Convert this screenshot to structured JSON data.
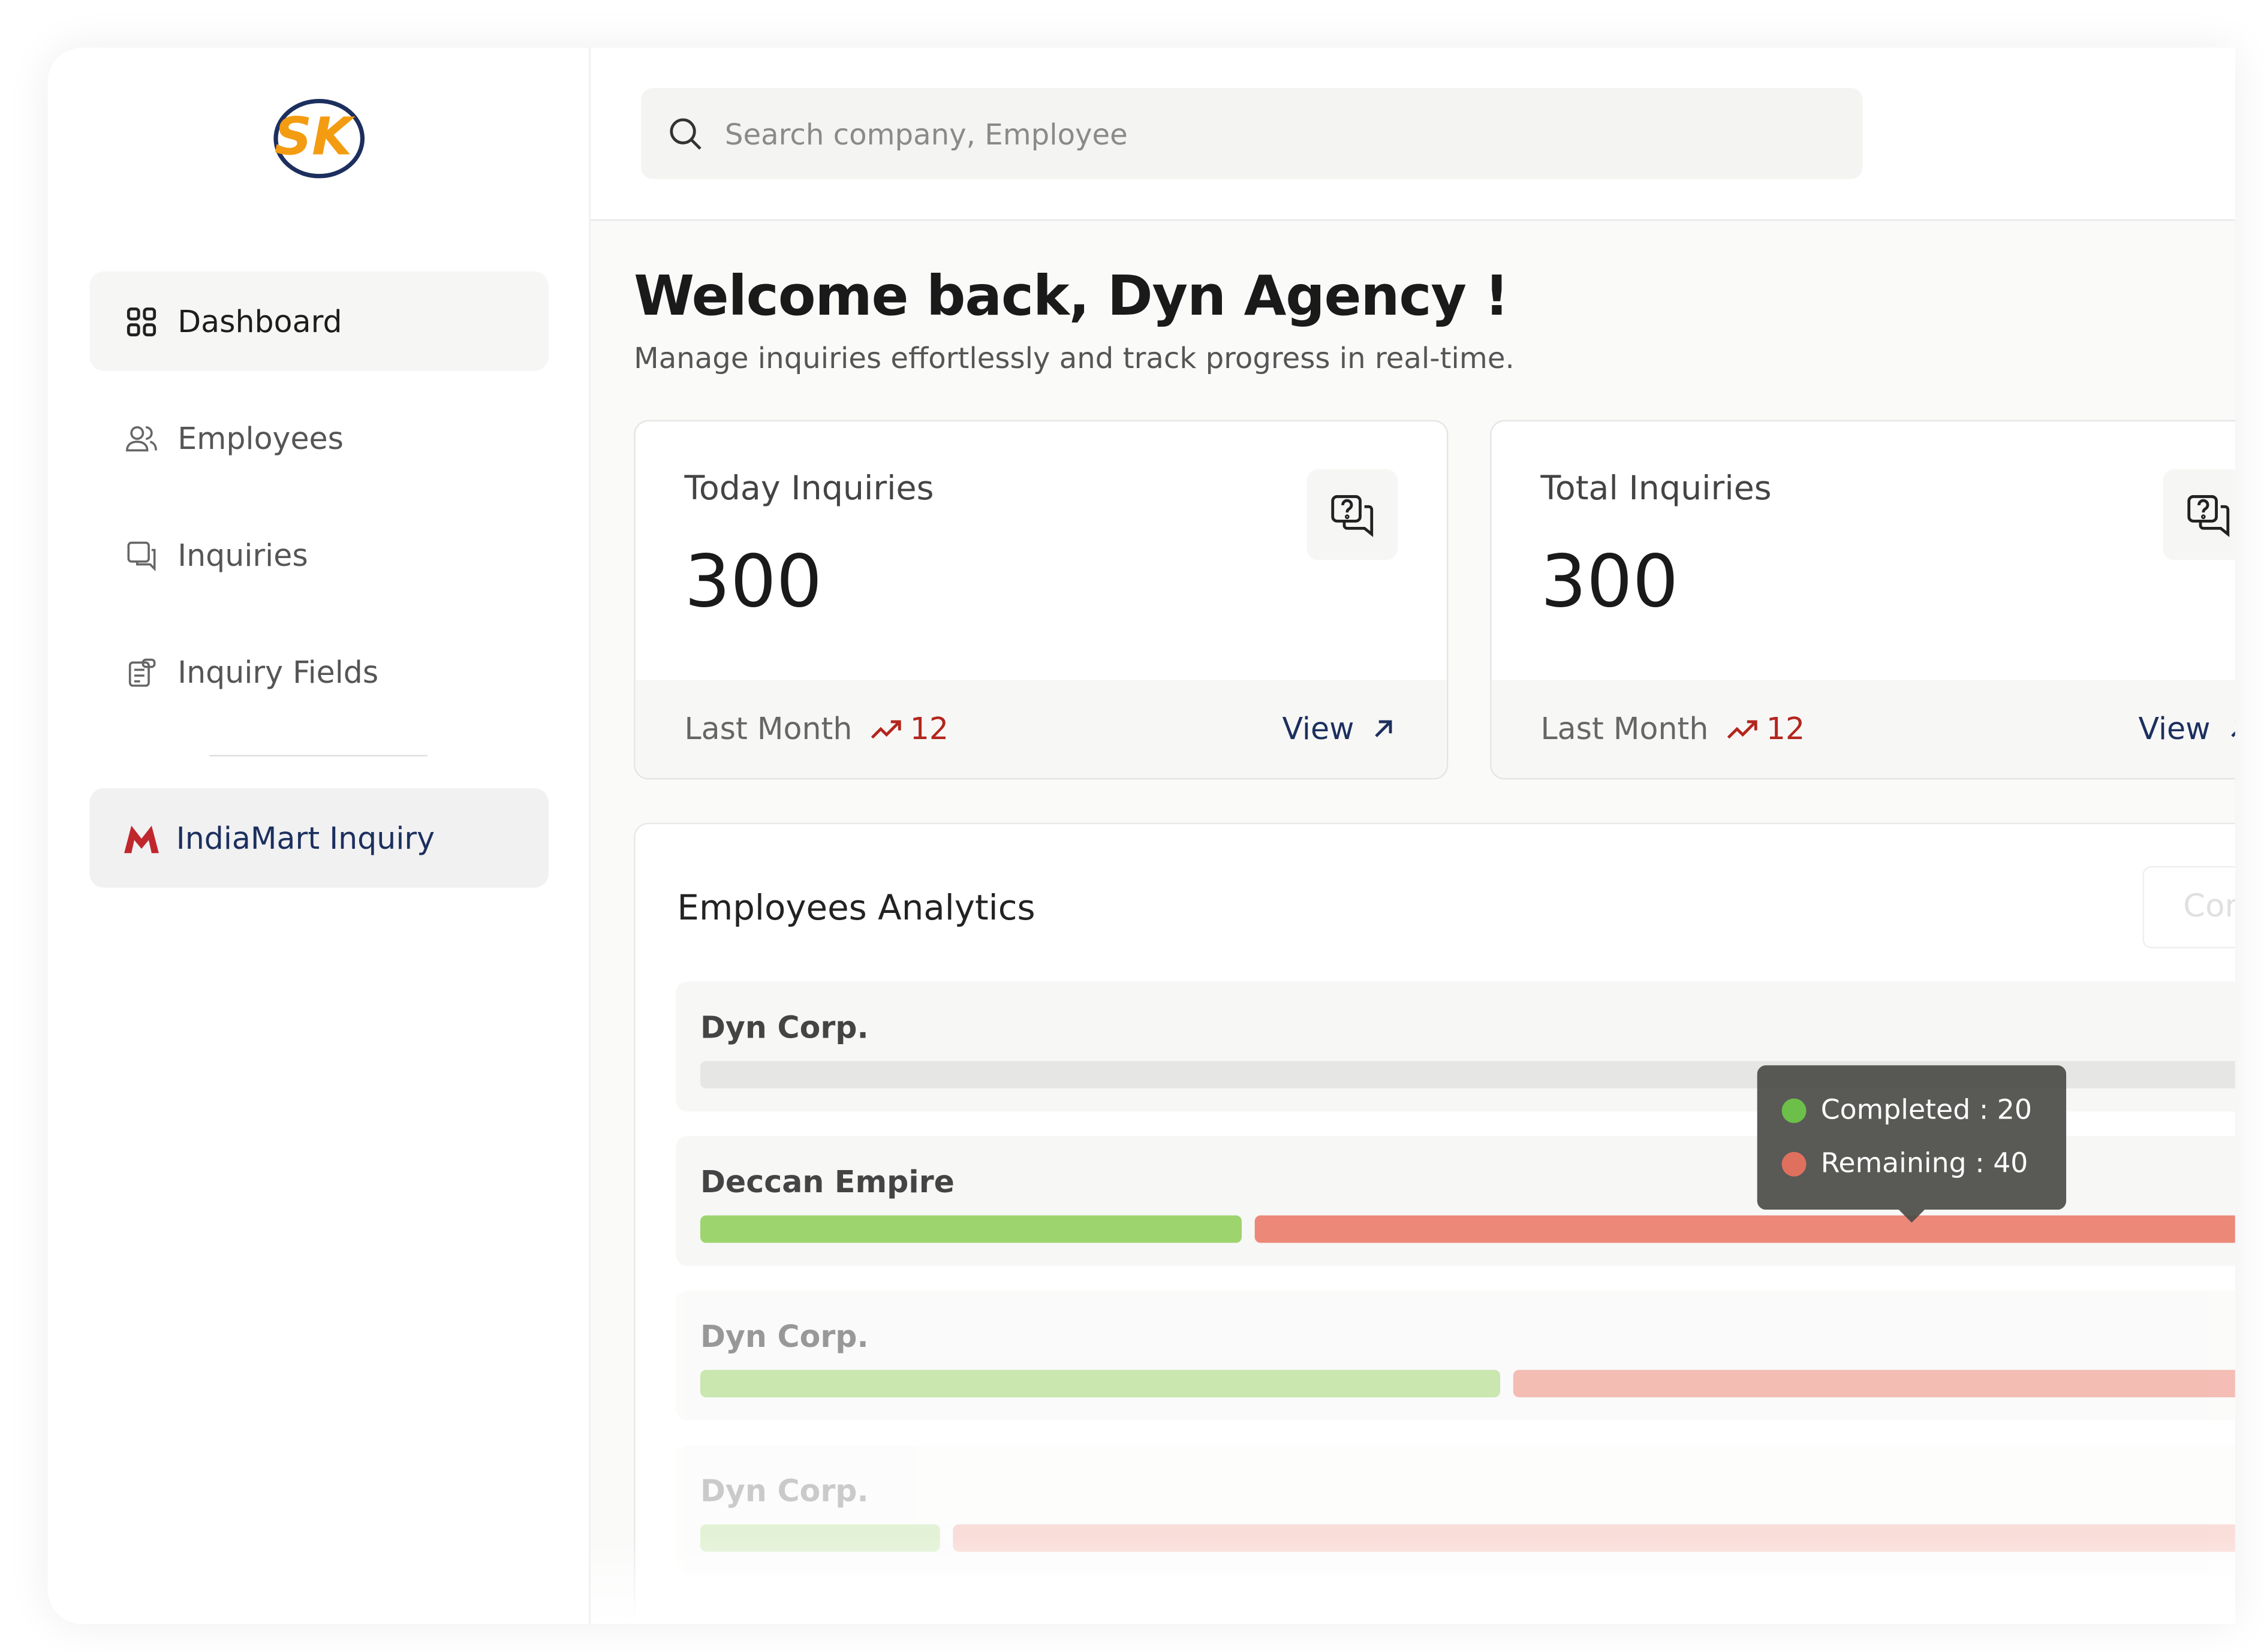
{
  "brand": {
    "logo": "SK"
  },
  "sidebar": {
    "nav": [
      "Dashboard",
      "Employees",
      "Inquiries",
      "Inquiry Fields"
    ],
    "integration": "IndiaMart Inquiry"
  },
  "search": {
    "placeholder": "Search company, Employee"
  },
  "welcome": {
    "title": "Welcome back, Dyn Agency !",
    "subtitle": "Manage inquiries effortlessly and track progress in real-time."
  },
  "cards": [
    {
      "title": "Today Inquiries",
      "value": 300,
      "footer_label": "Last Month",
      "change": 12,
      "link": "View"
    },
    {
      "title": "Total Inquiries",
      "value": 300,
      "footer_label": "Last Month",
      "change": 12,
      "link": "View"
    }
  ],
  "analytics": {
    "title": "Employees Analytics",
    "legend": [
      "Completed",
      "Remaining"
    ],
    "rows": [
      {
        "name": "Dyn Corp."
      },
      {
        "name": "Deccan Empire",
        "completed": 20,
        "remaining": 40
      },
      {
        "name": "Dyn Corp.",
        "completed": 30,
        "remaining": 31
      },
      {
        "name": "Dyn Corp.",
        "completed": 10,
        "remaining": 58
      }
    ],
    "tooltip": {
      "row": 1
    }
  }
}
